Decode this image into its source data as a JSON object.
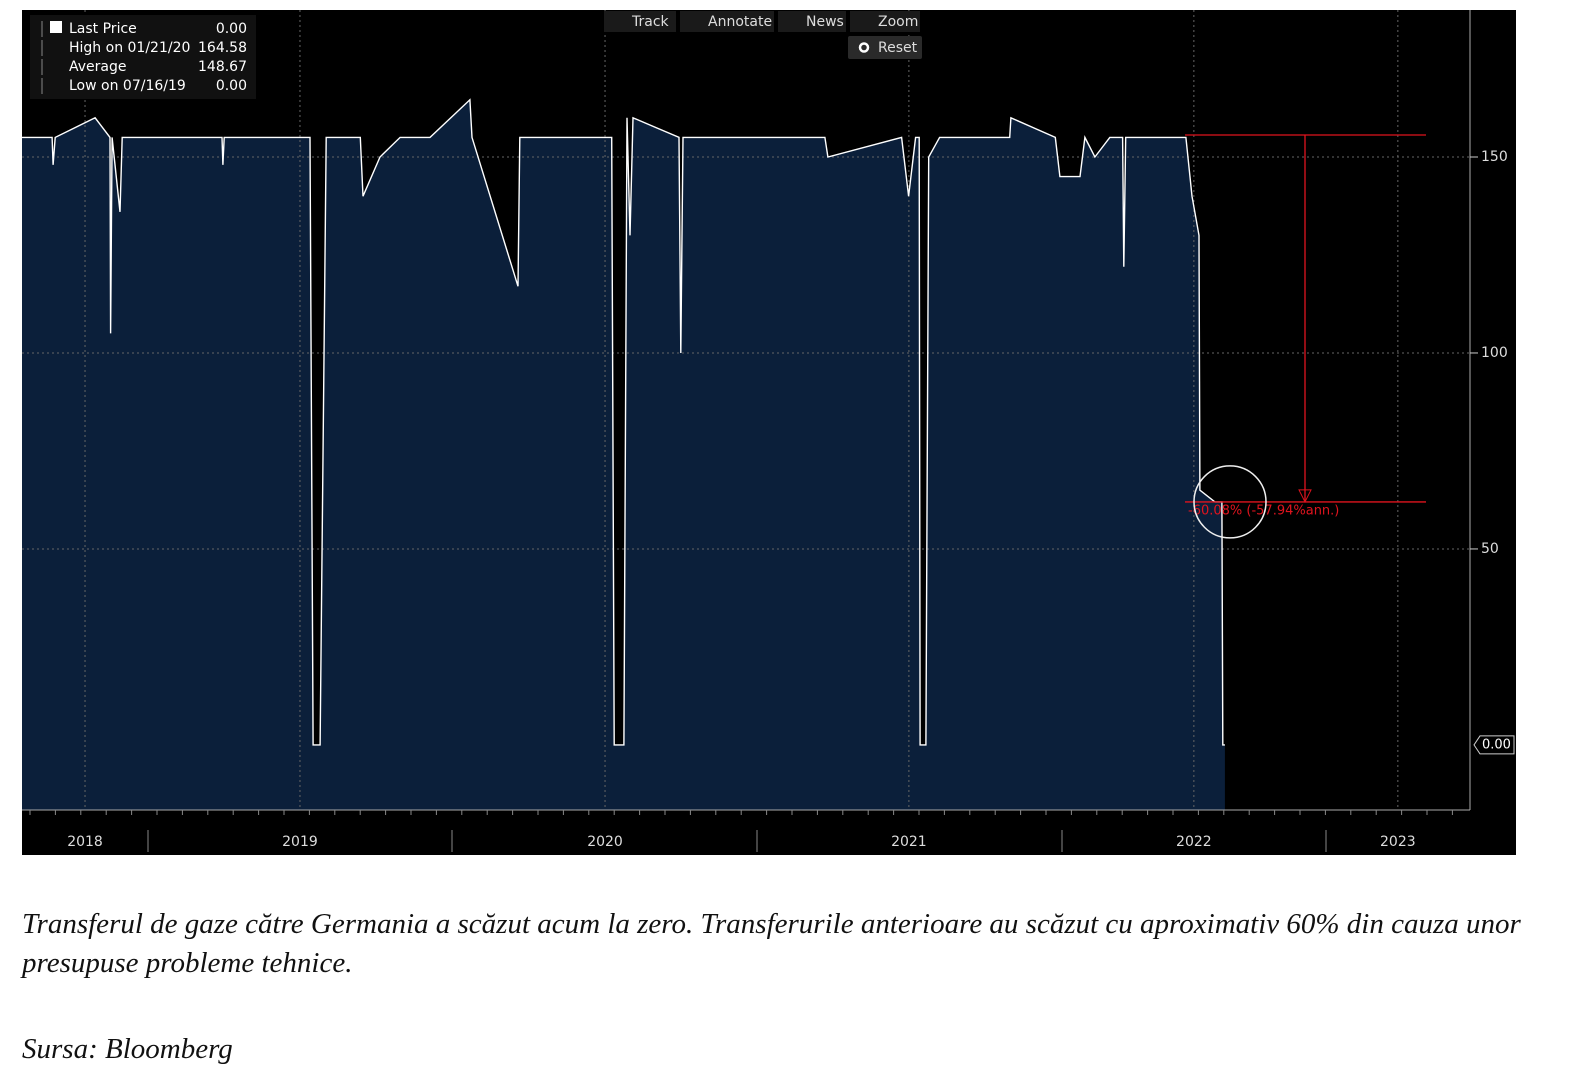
{
  "toolbar": [
    "Track",
    "Annotate",
    "News",
    "Zoom"
  ],
  "reset": "Reset",
  "chart_data": {
    "type": "area",
    "line_color": "#ffffff",
    "fill_color": "#0b1f3a",
    "legend": [
      {
        "label": "Last Price",
        "value": "0.00"
      },
      {
        "label": "High on 01/21/20",
        "value": "164.58"
      },
      {
        "label": "Average",
        "value": "148.67"
      },
      {
        "label": "Low on 07/16/19",
        "value": "0.00"
      }
    ],
    "last_value_tag": "0.00",
    "measure": {
      "from": 155.6,
      "to": 62,
      "label": "-60.08% (-57.94%ann.)",
      "color": "#e0141e"
    },
    "x": [
      2018.586,
      2018.685,
      2018.688,
      2018.695,
      2018.826,
      2018.875,
      2018.877,
      2018.882,
      2018.908,
      2018.915,
      2019.243,
      2019.246,
      2019.25,
      2019.532,
      2019.542,
      2019.565,
      2019.585,
      2019.697,
      2019.706,
      2019.762,
      2019.828,
      2019.926,
      2020.057,
      2020.064,
      2020.215,
      2020.221,
      2020.523,
      2020.531,
      2020.563,
      2020.573,
      2020.583,
      2020.593,
      2020.744,
      2020.75,
      2020.757,
      2021.223,
      2021.233,
      2021.475,
      2021.498,
      2021.521,
      2021.533,
      2021.536,
      2021.555,
      2021.564,
      2021.6,
      2021.83,
      2021.834,
      2021.98,
      2021.995,
      2022.061,
      2022.077,
      2022.11,
      2022.159,
      2022.201,
      2022.205,
      2022.211,
      2022.392,
      2022.409,
      2022.429,
      2022.452,
      2022.455,
      2022.504,
      2022.527,
      2022.53,
      2022.537
    ],
    "values": [
      155,
      155,
      148,
      155,
      160,
      155,
      105,
      155,
      136,
      155,
      155,
      148,
      155,
      155,
      0,
      0,
      155,
      155,
      140,
      150,
      155,
      155,
      164.58,
      155,
      117,
      155,
      155,
      0,
      0,
      160,
      130,
      160,
      155,
      100,
      155,
      155,
      150,
      155,
      140,
      155,
      155,
      0,
      0,
      150,
      155,
      155,
      160,
      155,
      145,
      145,
      155,
      150,
      155,
      155,
      122,
      155,
      155,
      155,
      140,
      130,
      65,
      62,
      62,
      0,
      0
    ],
    "xlim": [
      2018.586,
      2023.342
    ],
    "ylim": [
      -16.6,
      187.5
    ],
    "xticks": [
      {
        "value": 2018.793,
        "label": "2018"
      },
      {
        "value": 2019.499,
        "label": "2019"
      },
      {
        "value": 2020.501,
        "label": "2020"
      },
      {
        "value": 2021.499,
        "label": "2021"
      },
      {
        "value": 2022.435,
        "label": "2022"
      },
      {
        "value": 2023.105,
        "label": "2023"
      }
    ],
    "yticks": [
      50,
      100,
      150
    ],
    "grid": true
  },
  "caption": "Transferul de gaze către Germania a scăzut acum la zero. Transferurile anterioare au scăzut cu aproximativ 60% din cauza unor presupuse probleme tehnice.",
  "source": "Sursa: Bloomberg"
}
